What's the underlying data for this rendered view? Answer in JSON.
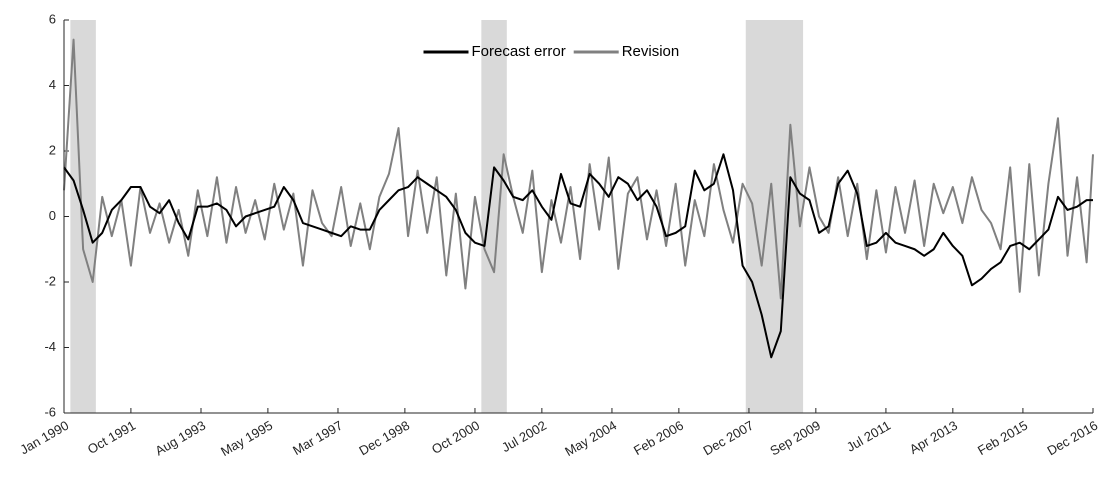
{
  "chart_data": {
    "type": "line",
    "x": [
      "1990-01",
      "1990-04",
      "1990-07",
      "1990-10",
      "1991-01",
      "1991-04",
      "1991-07",
      "1991-10",
      "1992-01",
      "1992-04",
      "1992-07",
      "1992-10",
      "1993-01",
      "1993-04",
      "1993-07",
      "1993-10",
      "1994-01",
      "1994-04",
      "1994-07",
      "1994-10",
      "1995-01",
      "1995-04",
      "1995-07",
      "1995-10",
      "1996-01",
      "1996-04",
      "1996-07",
      "1996-10",
      "1997-01",
      "1997-04",
      "1997-07",
      "1997-10",
      "1998-01",
      "1998-04",
      "1998-07",
      "1998-10",
      "1999-01",
      "1999-04",
      "1999-07",
      "1999-10",
      "2000-01",
      "2000-04",
      "2000-07",
      "2000-10",
      "2001-01",
      "2001-04",
      "2001-07",
      "2001-10",
      "2002-01",
      "2002-04",
      "2002-07",
      "2002-10",
      "2003-01",
      "2003-04",
      "2003-07",
      "2003-10",
      "2004-01",
      "2004-04",
      "2004-07",
      "2004-10",
      "2005-01",
      "2005-04",
      "2005-07",
      "2005-10",
      "2006-01",
      "2006-04",
      "2006-07",
      "2006-10",
      "2007-01",
      "2007-04",
      "2007-07",
      "2007-10",
      "2008-01",
      "2008-04",
      "2008-07",
      "2008-10",
      "2009-01",
      "2009-04",
      "2009-07",
      "2009-10",
      "2010-01",
      "2010-04",
      "2010-07",
      "2010-10",
      "2011-01",
      "2011-04",
      "2011-07",
      "2011-10",
      "2012-01",
      "2012-04",
      "2012-07",
      "2012-10",
      "2013-01",
      "2013-04",
      "2013-07",
      "2013-10",
      "2014-01",
      "2014-04",
      "2014-07",
      "2014-10",
      "2015-01",
      "2015-04",
      "2015-07",
      "2015-10",
      "2016-01",
      "2016-04",
      "2016-07",
      "2016-10",
      "2016-12"
    ],
    "series": [
      {
        "name": "Forecast error",
        "color": "#000000",
        "values": [
          1.5,
          1.1,
          0.2,
          -0.8,
          -0.5,
          0.2,
          0.5,
          0.9,
          0.9,
          0.3,
          0.1,
          0.5,
          -0.2,
          -0.7,
          0.3,
          0.3,
          0.4,
          0.2,
          -0.3,
          0.0,
          0.1,
          0.2,
          0.3,
          0.9,
          0.5,
          -0.2,
          -0.3,
          -0.4,
          -0.5,
          -0.6,
          -0.3,
          -0.4,
          -0.4,
          0.2,
          0.5,
          0.8,
          0.9,
          1.2,
          1.0,
          0.8,
          0.6,
          0.2,
          -0.5,
          -0.8,
          -0.9,
          1.5,
          1.1,
          0.6,
          0.5,
          0.8,
          0.3,
          -0.1,
          1.3,
          0.4,
          0.3,
          1.3,
          1.0,
          0.6,
          1.2,
          1.0,
          0.5,
          0.8,
          0.3,
          -0.6,
          -0.5,
          -0.3,
          1.4,
          0.8,
          1.0,
          1.9,
          0.8,
          -1.5,
          -2.0,
          -3.0,
          -4.3,
          -3.5,
          1.2,
          0.7,
          0.5,
          -0.5,
          -0.3,
          1.0,
          1.4,
          0.7,
          -0.9,
          -0.8,
          -0.5,
          -0.8,
          -0.9,
          -1.0,
          -1.2,
          -1.0,
          -0.5,
          -0.9,
          -1.2,
          -2.1,
          -1.9,
          -1.6,
          -1.4,
          -0.9,
          -0.8,
          -1.0,
          -0.7,
          -0.4,
          0.6,
          0.2,
          0.3,
          0.5,
          0.5
        ]
      },
      {
        "name": "Revision",
        "color": "#808080",
        "values": [
          0.8,
          5.4,
          -1.0,
          -2.0,
          0.6,
          -0.6,
          0.5,
          -1.5,
          0.9,
          -0.5,
          0.4,
          -0.8,
          0.2,
          -1.2,
          0.8,
          -0.6,
          1.2,
          -0.8,
          0.9,
          -0.5,
          0.5,
          -0.7,
          1.0,
          -0.4,
          0.7,
          -1.5,
          0.8,
          -0.2,
          -0.6,
          0.9,
          -0.9,
          0.4,
          -1.0,
          0.6,
          1.3,
          2.7,
          -0.6,
          1.4,
          -0.5,
          1.2,
          -1.8,
          0.7,
          -2.2,
          0.6,
          -1.0,
          -1.7,
          1.9,
          0.6,
          -0.5,
          1.4,
          -1.7,
          0.5,
          -0.8,
          0.9,
          -1.3,
          1.6,
          -0.4,
          1.8,
          -1.6,
          0.7,
          1.2,
          -0.7,
          0.8,
          -0.9,
          1.0,
          -1.5,
          0.5,
          -0.6,
          1.6,
          0.2,
          -0.8,
          1.0,
          0.4,
          -1.5,
          1.0,
          -2.5,
          2.8,
          -0.3,
          1.5,
          0.0,
          -0.5,
          1.2,
          -0.6,
          1.0,
          -1.3,
          0.8,
          -1.1,
          0.9,
          -0.5,
          1.1,
          -0.9,
          1.0,
          0.1,
          0.9,
          -0.2,
          1.2,
          0.2,
          -0.2,
          -1.0,
          1.5,
          -2.3,
          1.6,
          -1.8,
          1.0,
          3.0,
          -1.2,
          1.2,
          -1.4,
          1.9
        ]
      }
    ],
    "shaded": [
      [
        "1990-03",
        "1990-11"
      ],
      [
        "2000-12",
        "2001-08"
      ],
      [
        "2007-11",
        "2009-05"
      ]
    ],
    "xlim": [
      "1990-01",
      "2016-12"
    ],
    "xticks": [
      {
        "value": "1990-01",
        "label": "Jan 1990"
      },
      {
        "value": "1991-10",
        "label": "Oct 1991"
      },
      {
        "value": "1993-08",
        "label": "Aug 1993"
      },
      {
        "value": "1995-05",
        "label": "May 1995"
      },
      {
        "value": "1997-03",
        "label": "Mar 1997"
      },
      {
        "value": "1998-12",
        "label": "Dec 1998"
      },
      {
        "value": "2000-10",
        "label": "Oct 2000"
      },
      {
        "value": "2002-07",
        "label": "Jul 2002"
      },
      {
        "value": "2004-05",
        "label": "May 2004"
      },
      {
        "value": "2006-02",
        "label": "Feb 2006"
      },
      {
        "value": "2007-12",
        "label": "Dec 2007"
      },
      {
        "value": "2009-09",
        "label": "Sep 2009"
      },
      {
        "value": "2011-07",
        "label": "Jul 2011"
      },
      {
        "value": "2013-04",
        "label": "Apr 2013"
      },
      {
        "value": "2015-02",
        "label": "Feb 2015"
      },
      {
        "value": "2016-12",
        "label": "Dec 2016"
      }
    ],
    "ylim": [
      -6,
      6
    ],
    "yticks": [
      -6,
      -4,
      -2,
      0,
      2,
      4,
      6
    ],
    "legend": "upper center"
  }
}
